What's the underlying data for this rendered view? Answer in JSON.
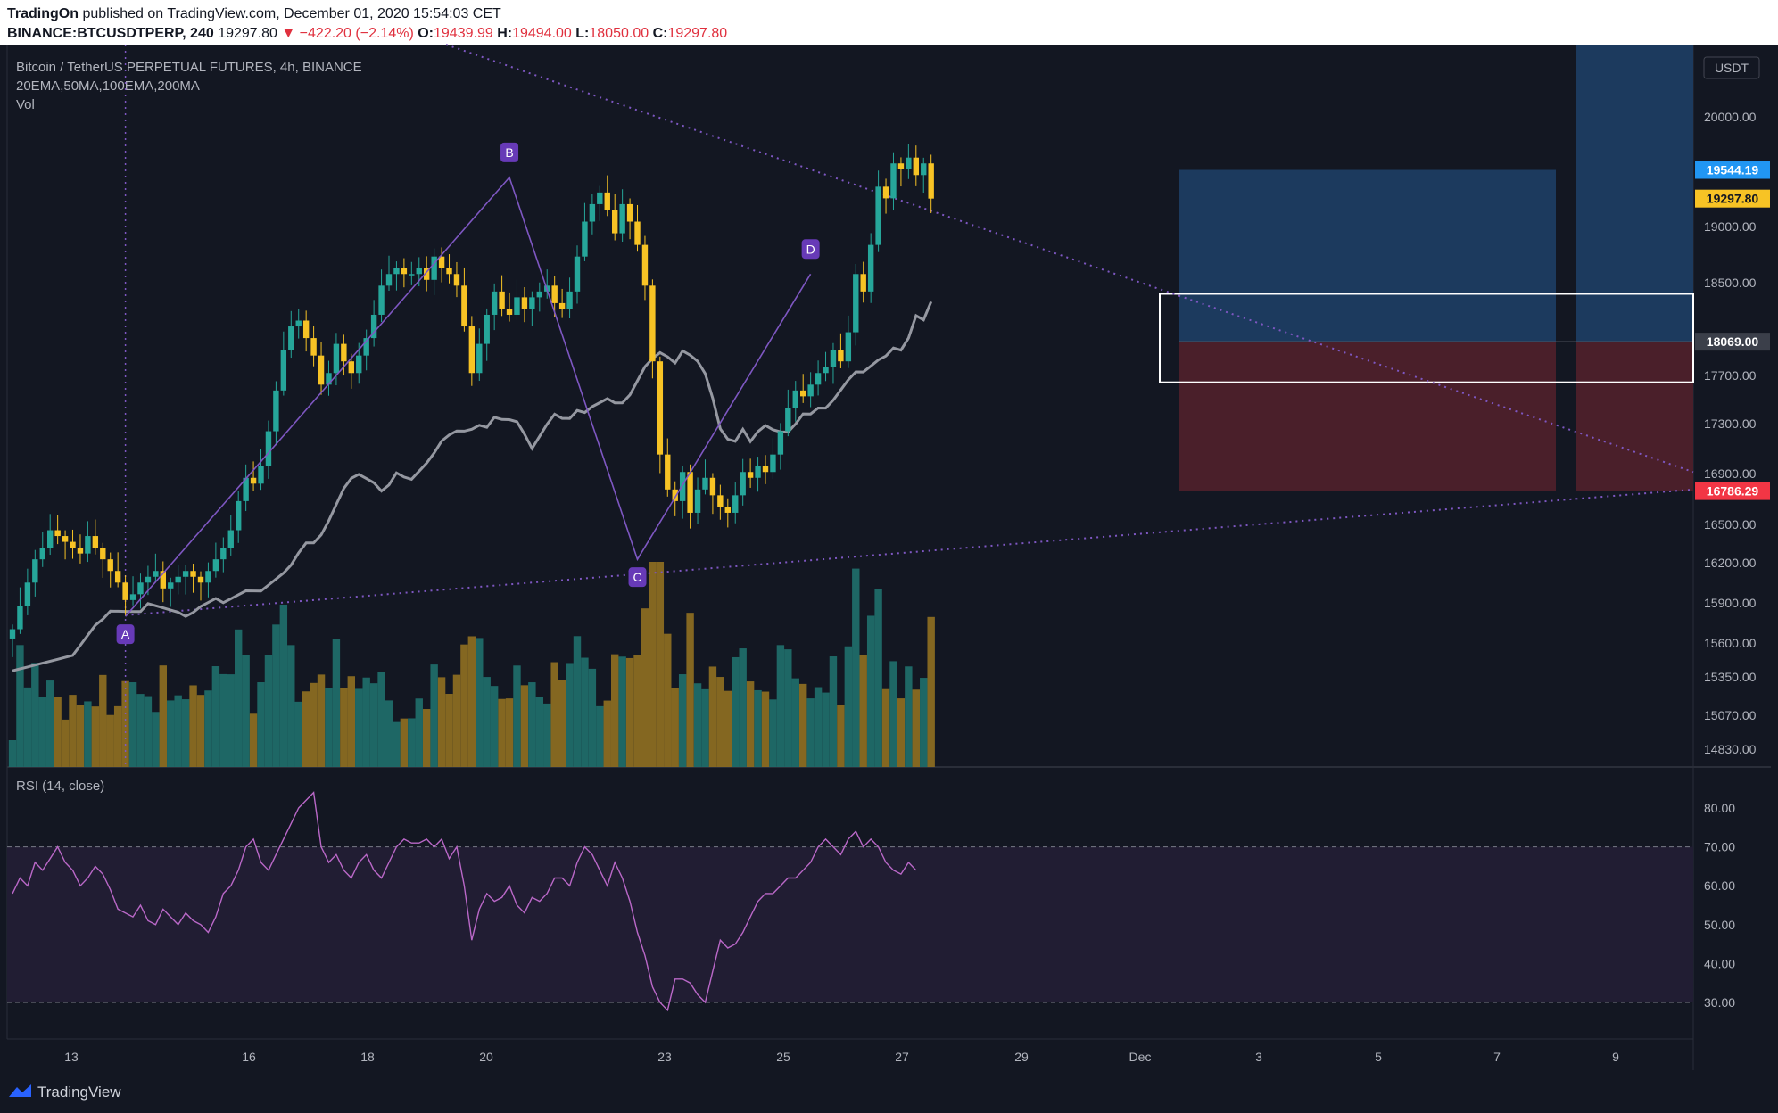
{
  "header": {
    "author": "TradingOn",
    "published_text": "published on TradingView.com, December 01, 2020 15:54:03 CET",
    "symbol": "BINANCE:BTCUSDTPERP, 240",
    "last_price": "19297.80",
    "change": "▼ −422.20 (−2.14%)",
    "open_label": "O:",
    "open": "19439.99",
    "high_label": "H:",
    "high": "19494.00",
    "low_label": "L:",
    "low": "18050.00",
    "close_label": "C:",
    "close": "19297.80"
  },
  "legend": {
    "title": "Bitcoin / TetherUS PERPETUAL FUTURES, 4h, BINANCE",
    "indicators": "20EMA,50MA,100EMA,200MA",
    "volume": "Vol",
    "rsi": "RSI (14, close)"
  },
  "currency_label": "USDT",
  "price_axis": [
    "20000.00",
    "19000.00",
    "18500.00",
    "17700.00",
    "17300.00",
    "16900.00",
    "16500.00",
    "16200.00",
    "15900.00",
    "15600.00",
    "15350.00",
    "15070.00",
    "14830.00"
  ],
  "rsi_axis": [
    "80.00",
    "70.00",
    "60.00",
    "50.00",
    "40.00",
    "30.00"
  ],
  "time_axis": [
    "13",
    "16",
    "18",
    "20",
    "23",
    "25",
    "27",
    "29",
    "Dec",
    "3",
    "5",
    "7",
    "9"
  ],
  "price_tags": [
    {
      "value": "19544.19",
      "color": "#2196f3"
    },
    {
      "value": "19297.80",
      "color": "#f7c325"
    },
    {
      "value": "18069.00",
      "color": "#3b3f4a"
    },
    {
      "value": "16786.29",
      "color": "#f23645"
    }
  ],
  "pattern_labels": [
    "A",
    "B",
    "C",
    "D"
  ],
  "brand": "TradingView",
  "colors": {
    "background": "#131722",
    "up": "#26a69a",
    "down": "#f7c325",
    "ma": "#9598a1",
    "pattern": "#673ab7",
    "rsi": "#ba68c8",
    "target": "#1c3a5e",
    "stop": "#4a1f2a"
  },
  "chart_data": {
    "type": "candlestick",
    "title": "Bitcoin / TetherUS PERPETUAL FUTURES, 4h, BINANCE",
    "interval": "4h",
    "x_unit": "4h bar index (bar 0 ≈ Nov 12 2020, bar 116 = Dec 1 2020 12:00)",
    "ylim": [
      14600,
      20500
    ],
    "closes": [
      15600,
      15800,
      16000,
      16200,
      16300,
      16450,
      16400,
      16350,
      16300,
      16250,
      16400,
      16300,
      16200,
      16100,
      16000,
      15850,
      15900,
      16000,
      16050,
      16100,
      15950,
      16000,
      16050,
      16100,
      16050,
      16000,
      16100,
      16200,
      16300,
      16450,
      16700,
      16900,
      16850,
      17000,
      17300,
      17650,
      18000,
      18200,
      18250,
      18100,
      17950,
      17700,
      17800,
      18050,
      17900,
      17800,
      17950,
      18100,
      18300,
      18550,
      18650,
      18700,
      18650,
      18650,
      18700,
      18600,
      18800,
      18700,
      18650,
      18550,
      18200,
      17800,
      18050,
      18300,
      18500,
      18350,
      18300,
      18450,
      18350,
      18450,
      18500,
      18550,
      18400,
      18350,
      18500,
      18800,
      19100,
      19250,
      19350,
      19200,
      19000,
      19250,
      19100,
      18900,
      18550,
      17900,
      17100,
      16800,
      16700,
      16950,
      16600,
      16800,
      16900,
      16750,
      16650,
      16600,
      16750,
      16950,
      16900,
      17000,
      16950,
      17100,
      17300,
      17500,
      17650,
      17600,
      17700,
      17800,
      17850,
      18000,
      17900,
      18150,
      18650,
      18500,
      18900,
      19400,
      19300,
      19600,
      19550,
      19650,
      19500,
      19600,
      19297.8
    ],
    "moving_average": {
      "name": "100EMA",
      "start": 15050,
      "end": 18150
    },
    "pattern_points": [
      {
        "label": "A",
        "bar": 15,
        "price": 15710
      },
      {
        "label": "B",
        "bar": 66,
        "price": 19480
      },
      {
        "label": "C",
        "bar": 83,
        "price": 16200
      },
      {
        "label": "D",
        "bar": 106,
        "price": 18650
      }
    ],
    "long_position": {
      "entry": 18069.0,
      "target": 19544.19,
      "stop": 16786.29
    },
    "zone": {
      "top": 18480,
      "bottom": 17720
    },
    "volume_unit": "relative",
    "rsi": {
      "period": 14,
      "levels": [
        30,
        70
      ],
      "ylim": [
        25,
        85
      ],
      "values": [
        58,
        62,
        60,
        66,
        64,
        67,
        70,
        66,
        64,
        60,
        62,
        65,
        63,
        59,
        54,
        53,
        52,
        55,
        51,
        50,
        54,
        52,
        50,
        53,
        51,
        50,
        48,
        52,
        58,
        60,
        64,
        70,
        72,
        66,
        64,
        68,
        72,
        76,
        80,
        82,
        84,
        70,
        66,
        68,
        64,
        62,
        66,
        68,
        64,
        62,
        66,
        70,
        72,
        71,
        71,
        72,
        70,
        72,
        67,
        70,
        60,
        46,
        54,
        58,
        56,
        57,
        60,
        55,
        53,
        57,
        56,
        58,
        62,
        62,
        60,
        66,
        70,
        68,
        64,
        60,
        66,
        62,
        56,
        48,
        42,
        34,
        30,
        28,
        36,
        36,
        35,
        32,
        30,
        38,
        46,
        44,
        45,
        48,
        52,
        56,
        58,
        58,
        60,
        62,
        62,
        64,
        66,
        70,
        72,
        70,
        68,
        72,
        74,
        70,
        72,
        70,
        66,
        64,
        63,
        66,
        64
      ]
    }
  }
}
